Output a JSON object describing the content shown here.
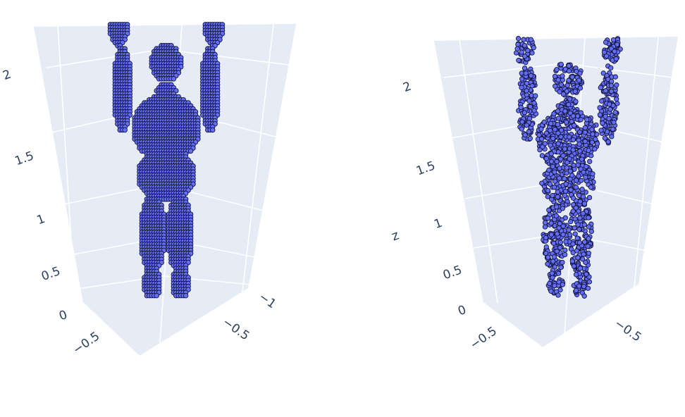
{
  "chart_data": [
    {
      "type": "scatter3d",
      "subplot": "left",
      "marker_color": "#636efa",
      "marker_line_color": "#111133",
      "background_color": "#e5ecf6",
      "z_ticks": [
        "0",
        "0.5",
        "1",
        "1.5",
        "2"
      ],
      "y_ticks": [
        "−1",
        "−0.5"
      ],
      "x_ticks": [
        "−0.5"
      ],
      "zlabel": "",
      "point_style": "dense regular mesh (full body point cloud)"
    },
    {
      "type": "scatter3d",
      "subplot": "right",
      "marker_color": "#636efa",
      "marker_line_color": "#111133",
      "background_color": "#e5ecf6",
      "z_ticks": [
        "0",
        "0.5",
        "1",
        "1.5",
        "2"
      ],
      "y_ticks": [
        "−0.5"
      ],
      "x_ticks": [
        "−0.5"
      ],
      "zlabel": "z",
      "point_style": "sparse irregular sampled body point cloud"
    }
  ]
}
